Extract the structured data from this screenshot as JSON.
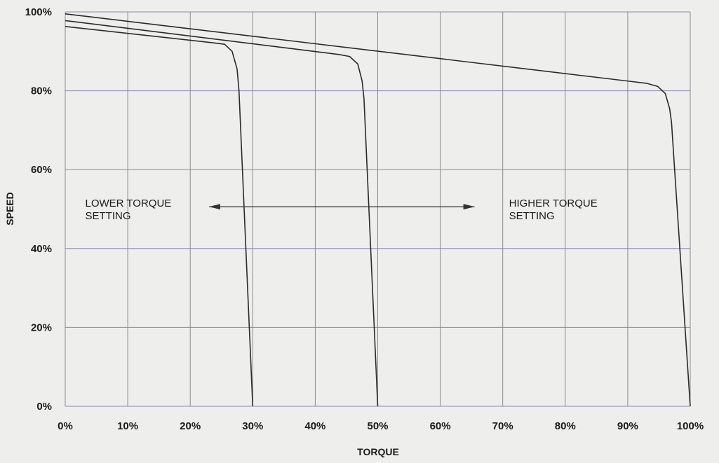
{
  "chart_data": {
    "type": "line",
    "title": "",
    "xlabel": "TORQUE",
    "ylabel": "SPEED",
    "xlim": [
      0,
      100
    ],
    "ylim": [
      0,
      100
    ],
    "x_ticks": [
      0,
      10,
      20,
      30,
      40,
      50,
      60,
      70,
      80,
      90,
      100
    ],
    "y_ticks": [
      0,
      20,
      40,
      60,
      80,
      100
    ],
    "x_tick_labels": [
      "0%",
      "10%",
      "20%",
      "30%",
      "40%",
      "50%",
      "60%",
      "70%",
      "80%",
      "90%",
      "100%"
    ],
    "y_tick_labels": [
      "0%",
      "20%",
      "40%",
      "60%",
      "80%",
      "100%"
    ],
    "grid": true,
    "legend": "none",
    "series": [
      {
        "points": [
          [
            0,
            96.3
          ],
          [
            23.5,
            92.2
          ],
          [
            25.5,
            91.8
          ],
          [
            26.7,
            90.0
          ],
          [
            27.5,
            85.5
          ],
          [
            27.8,
            80.0
          ],
          [
            30.0,
            0
          ]
        ]
      },
      {
        "points": [
          [
            0,
            97.8
          ],
          [
            43.8,
            89.2
          ],
          [
            45.5,
            88.7
          ],
          [
            46.8,
            86.8
          ],
          [
            47.5,
            82.5
          ],
          [
            47.8,
            78.0
          ],
          [
            50.0,
            0
          ]
        ]
      },
      {
        "points": [
          [
            0,
            99.5
          ],
          [
            93.0,
            81.9
          ],
          [
            94.8,
            81.1
          ],
          [
            96.0,
            79.3
          ],
          [
            96.7,
            75.5
          ],
          [
            97.0,
            72.0
          ],
          [
            100.0,
            0
          ]
        ]
      }
    ],
    "annotations": [
      {
        "lines": [
          "LOWER TORQUE",
          "SETTING"
        ],
        "x": 3.2,
        "y": 50.6
      },
      {
        "lines": [
          "HIGHER TORQUE",
          "SETTING"
        ],
        "x": 71.0,
        "y": 50.6
      }
    ],
    "arrow": {
      "from": [
        23,
        50.6
      ],
      "to": [
        65.5,
        50.6
      ]
    }
  }
}
